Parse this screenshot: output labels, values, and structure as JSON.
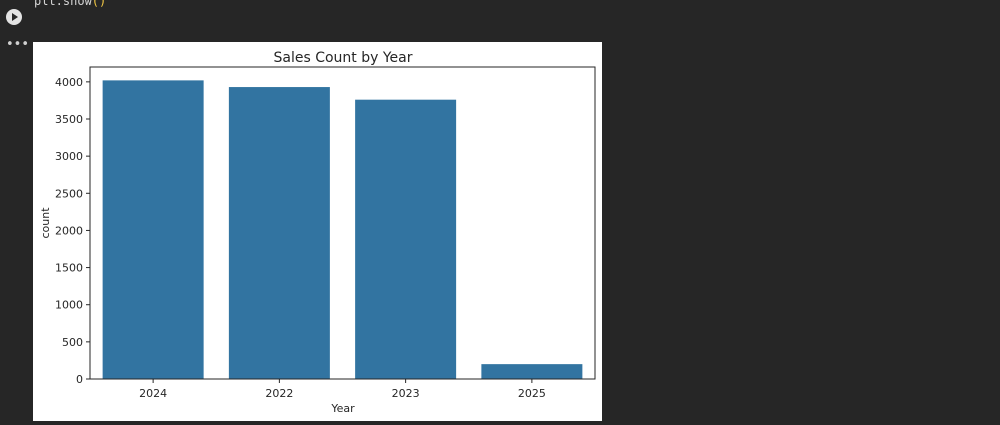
{
  "cell": {
    "code_prefix": "plt.show",
    "code_parens": "()",
    "run_icon": "play-icon",
    "more_icon": "more-horiz-icon",
    "more_glyph": "•••"
  },
  "chart_data": {
    "type": "bar",
    "title": "Sales Count by Year",
    "xlabel": "Year",
    "ylabel": "count",
    "categories": [
      "2024",
      "2022",
      "2023",
      "2025"
    ],
    "values": [
      4020,
      3930,
      3760,
      200
    ],
    "ylim": [
      0,
      4200
    ],
    "yticks": [
      0,
      500,
      1000,
      1500,
      2000,
      2500,
      3000,
      3500,
      4000
    ],
    "bar_color": "#3274a1",
    "grid": false,
    "legend": "none"
  }
}
